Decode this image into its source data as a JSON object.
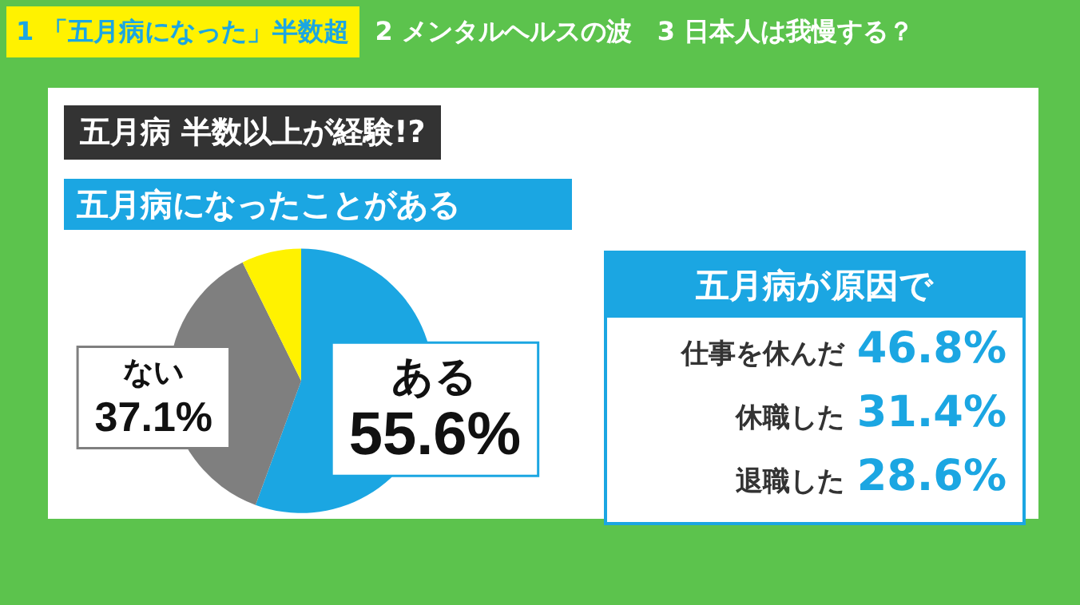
{
  "chart_data": [
    {
      "type": "pie",
      "title": "五月病になったことがある",
      "categories": [
        "ある",
        "ない",
        null
      ],
      "values": [
        55.6,
        37.1,
        7.3
      ],
      "colors": [
        "#1ba6e2",
        "#7f7f7f",
        "#fff200"
      ],
      "value_labels": [
        "55.6%",
        "37.1%",
        null
      ],
      "legend": false,
      "annotations": [
        "1 「五月病になった」半数超",
        "2 メンタルヘルスの波",
        "3 日本人は我慢する？",
        "五月病 半数以上が経験!?"
      ]
    },
    {
      "type": "other",
      "title": "五月病が原因で",
      "categories": [
        "仕事を休んだ",
        "休職した",
        "退職した"
      ],
      "values": [
        46.8,
        31.4,
        28.6
      ],
      "value_labels": [
        "46.8%",
        "31.4%",
        "28.6%"
      ],
      "color": "#1ba6e2"
    }
  ]
}
